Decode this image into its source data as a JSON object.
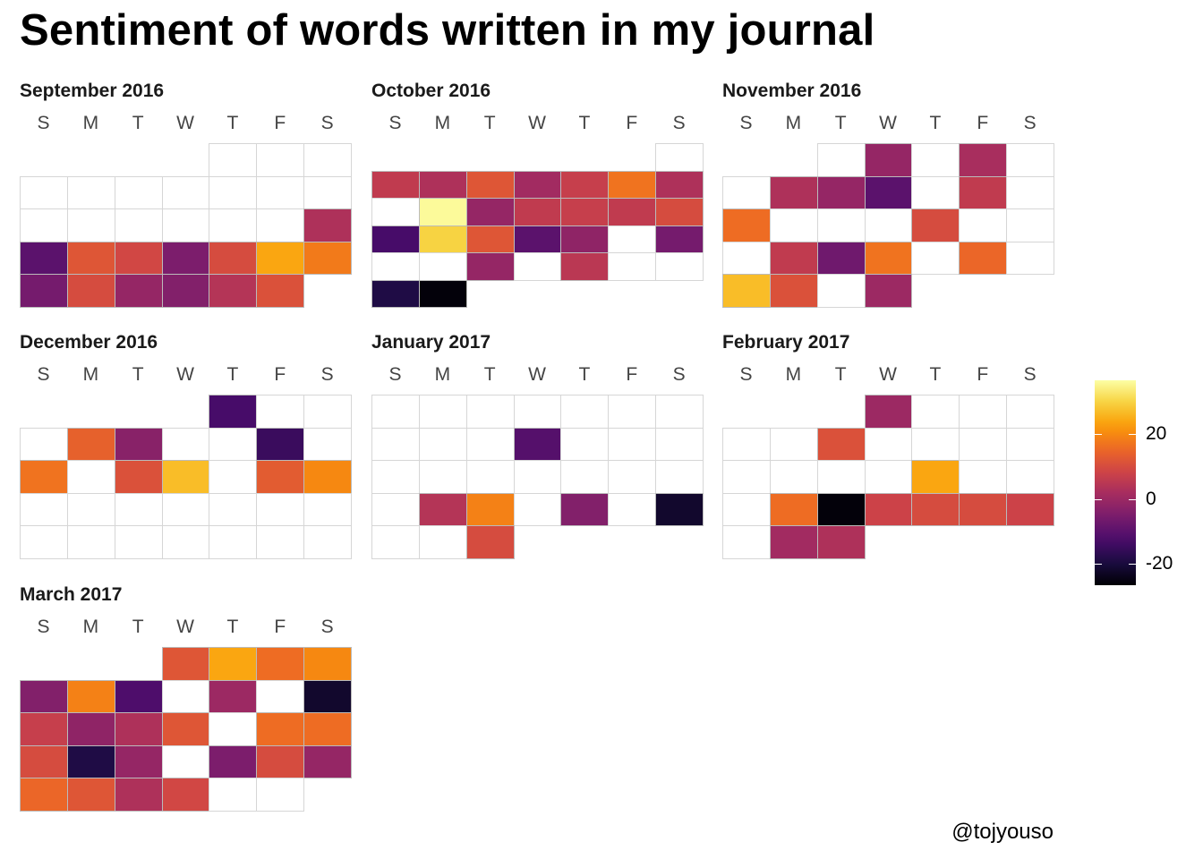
{
  "chart_data": {
    "type": "heatmap",
    "title": "Sentiment of words written in my journal",
    "weekday_labels": [
      "S",
      "M",
      "T",
      "W",
      "T",
      "F",
      "S"
    ],
    "color_scale": "inferno",
    "color_range": [
      -26.7,
      36.7
    ],
    "legend_ticks": [
      20,
      0,
      -20
    ],
    "legend_placement": "right",
    "months": [
      {
        "label": "September 2016",
        "first_weekday": 4,
        "days": 30,
        "values": [
          null,
          null,
          null,
          null,
          null,
          null,
          null,
          null,
          null,
          null,
          null,
          null,
          null,
          null,
          null,
          null,
          3,
          -10,
          12,
          9,
          -5,
          10,
          24,
          18,
          -6,
          10,
          -1,
          -4,
          4,
          11
        ]
      },
      {
        "label": "October 2016",
        "first_weekday": 6,
        "days": 31,
        "values": [
          null,
          6,
          3,
          12,
          1,
          7,
          17,
          3,
          null,
          36,
          -1,
          6,
          7,
          6,
          10,
          -13,
          30,
          12,
          -10,
          -2,
          null,
          -6,
          null,
          null,
          -1,
          null,
          5,
          null,
          null,
          -19,
          -26
        ]
      },
      {
        "label": "November 2016",
        "first_weekday": 2,
        "days": 30,
        "values": [
          null,
          -1,
          null,
          2,
          null,
          null,
          3,
          -1,
          -10,
          null,
          6,
          null,
          16,
          null,
          null,
          null,
          10,
          null,
          null,
          null,
          6,
          -7,
          17,
          null,
          15,
          null,
          27,
          11,
          null,
          0
        ]
      },
      {
        "label": "December 2016",
        "first_weekday": 4,
        "days": 31,
        "values": [
          -13,
          null,
          null,
          null,
          14,
          -3,
          null,
          null,
          -15,
          null,
          17,
          null,
          11,
          27,
          null,
          13,
          20,
          null,
          null,
          null,
          null,
          null,
          null,
          null,
          null,
          null,
          null,
          null,
          null,
          null,
          null
        ]
      },
      {
        "label": "January 2017",
        "first_weekday": 0,
        "days": 31,
        "values": [
          null,
          null,
          null,
          null,
          null,
          null,
          null,
          null,
          null,
          null,
          -11,
          null,
          null,
          null,
          null,
          null,
          null,
          null,
          null,
          null,
          null,
          null,
          4,
          19,
          null,
          -4,
          null,
          -22,
          null,
          null,
          10
        ]
      },
      {
        "label": "February 2017",
        "first_weekday": 3,
        "days": 28,
        "values": [
          0,
          null,
          null,
          null,
          null,
          null,
          11,
          null,
          null,
          null,
          null,
          null,
          null,
          null,
          null,
          24,
          null,
          null,
          null,
          16,
          -26,
          8,
          10,
          10,
          8,
          null,
          1,
          3
        ]
      },
      {
        "label": "March 2017",
        "first_weekday": 3,
        "days": 31,
        "values": [
          12,
          24,
          16,
          20,
          -4,
          19,
          -12,
          null,
          0,
          null,
          -22,
          7,
          -2,
          3,
          12,
          null,
          16,
          16,
          10,
          -19,
          -1,
          null,
          -5,
          10,
          -1,
          15,
          12,
          3,
          9,
          null,
          null
        ]
      }
    ]
  },
  "credit": "@tojyouso"
}
